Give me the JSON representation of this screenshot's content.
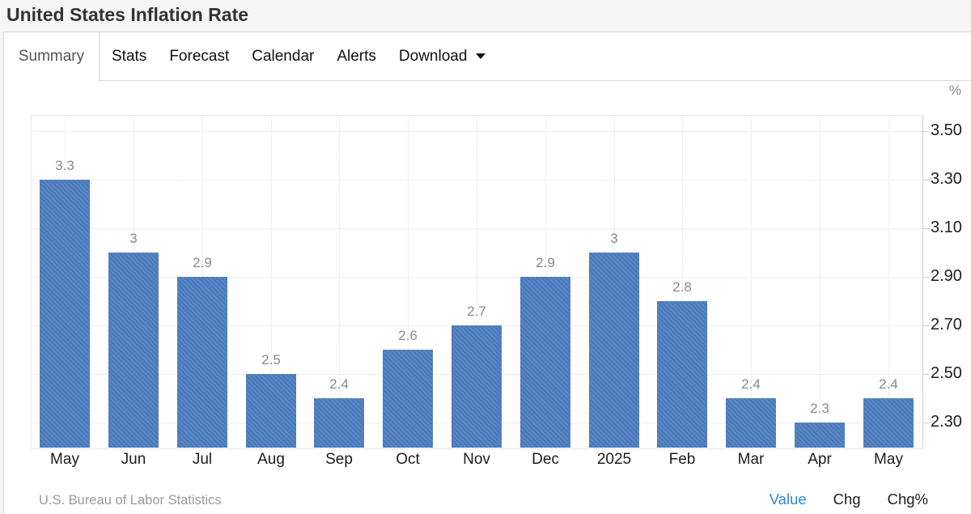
{
  "header": {
    "title": "United States Inflation Rate"
  },
  "tabs": {
    "items": [
      {
        "label": "Summary",
        "active": true
      },
      {
        "label": "Stats",
        "active": false
      },
      {
        "label": "Forecast",
        "active": false
      },
      {
        "label": "Calendar",
        "active": false
      },
      {
        "label": "Alerts",
        "active": false
      },
      {
        "label": "Download",
        "active": false,
        "has_caret": true
      }
    ]
  },
  "chart_data": {
    "type": "bar",
    "title": "United States Inflation Rate",
    "unit_label": "%",
    "categories": [
      "May",
      "Jun",
      "Jul",
      "Aug",
      "Sep",
      "Oct",
      "Nov",
      "Dec",
      "2025",
      "Feb",
      "Mar",
      "Apr",
      "May"
    ],
    "values": [
      3.3,
      3,
      2.9,
      2.5,
      2.4,
      2.6,
      2.7,
      2.9,
      3,
      2.8,
      2.4,
      2.3,
      2.4
    ],
    "value_labels": [
      "3.3",
      "3",
      "2.9",
      "2.5",
      "2.4",
      "2.6",
      "2.7",
      "2.9",
      "3",
      "2.8",
      "2.4",
      "2.3",
      "2.4"
    ],
    "yticks": [
      2.3,
      2.5,
      2.7,
      2.9,
      3.1,
      3.3,
      3.5
    ],
    "ytick_labels": [
      "2.30",
      "2.50",
      "2.70",
      "2.90",
      "3.10",
      "3.30",
      "3.50"
    ],
    "ylim": [
      2.193,
      3.567
    ],
    "bar_color": "#4c7dbf",
    "grid": true,
    "value_axis_side": "right",
    "legend": "none"
  },
  "footer": {
    "source": "U.S. Bureau of Labor Statistics",
    "links": [
      {
        "label": "Value",
        "active": true
      },
      {
        "label": "Chg",
        "active": false
      },
      {
        "label": "Chg%",
        "active": false
      }
    ]
  },
  "colors": {
    "accent_blue": "#2e86de",
    "bar_blue": "#4c7dbf",
    "label_gray": "#8a8a8a"
  }
}
